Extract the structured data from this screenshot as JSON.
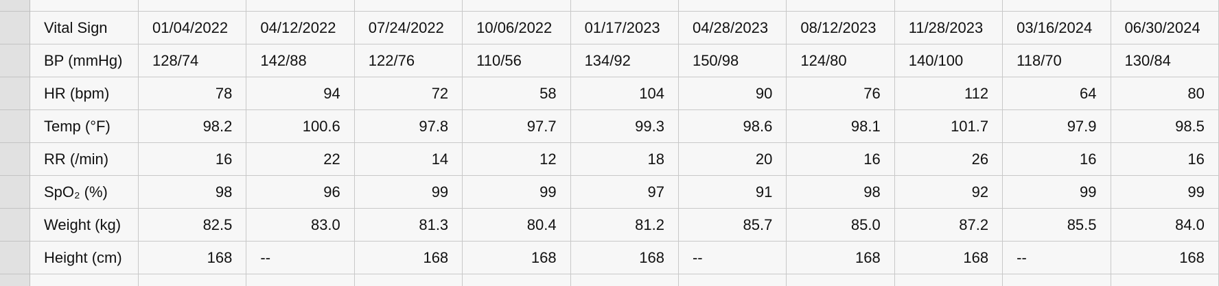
{
  "table": {
    "header": {
      "label": "Vital Sign",
      "dates": [
        "01/04/2022",
        "04/12/2022",
        "07/24/2022",
        "10/06/2022",
        "01/17/2023",
        "04/28/2023",
        "08/12/2023",
        "11/28/2023",
        "03/16/2024",
        "06/30/2024"
      ]
    },
    "rows": [
      {
        "label": "BP (mmHg)",
        "values": [
          "128/74",
          "142/88",
          "122/76",
          "110/56",
          "134/92",
          "150/98",
          "124/80",
          "140/100",
          "118/70",
          "130/84"
        ]
      },
      {
        "label": "HR (bpm)",
        "values": [
          "78",
          "94",
          "72",
          "58",
          "104",
          "90",
          "76",
          "112",
          "64",
          "80"
        ]
      },
      {
        "label": "Temp (°F)",
        "values": [
          "98.2",
          "100.6",
          "97.8",
          "97.7",
          "99.3",
          "98.6",
          "98.1",
          "101.7",
          "97.9",
          "98.5"
        ]
      },
      {
        "label": "RR (/min)",
        "values": [
          "16",
          "22",
          "14",
          "12",
          "18",
          "20",
          "16",
          "26",
          "16",
          "16"
        ]
      },
      {
        "label": "SpO₂ (%)",
        "values": [
          "98",
          "96",
          "99",
          "99",
          "97",
          "91",
          "98",
          "92",
          "99",
          "99"
        ]
      },
      {
        "label": "Weight (kg)",
        "values": [
          "82.5",
          "83.0",
          "81.3",
          "80.4",
          "81.2",
          "85.7",
          "85.0",
          "87.2",
          "85.5",
          "84.0"
        ]
      },
      {
        "label": "Height (cm)",
        "values": [
          "168",
          "--",
          "168",
          "168",
          "168",
          "--",
          "168",
          "168",
          "--",
          "168"
        ]
      }
    ]
  }
}
